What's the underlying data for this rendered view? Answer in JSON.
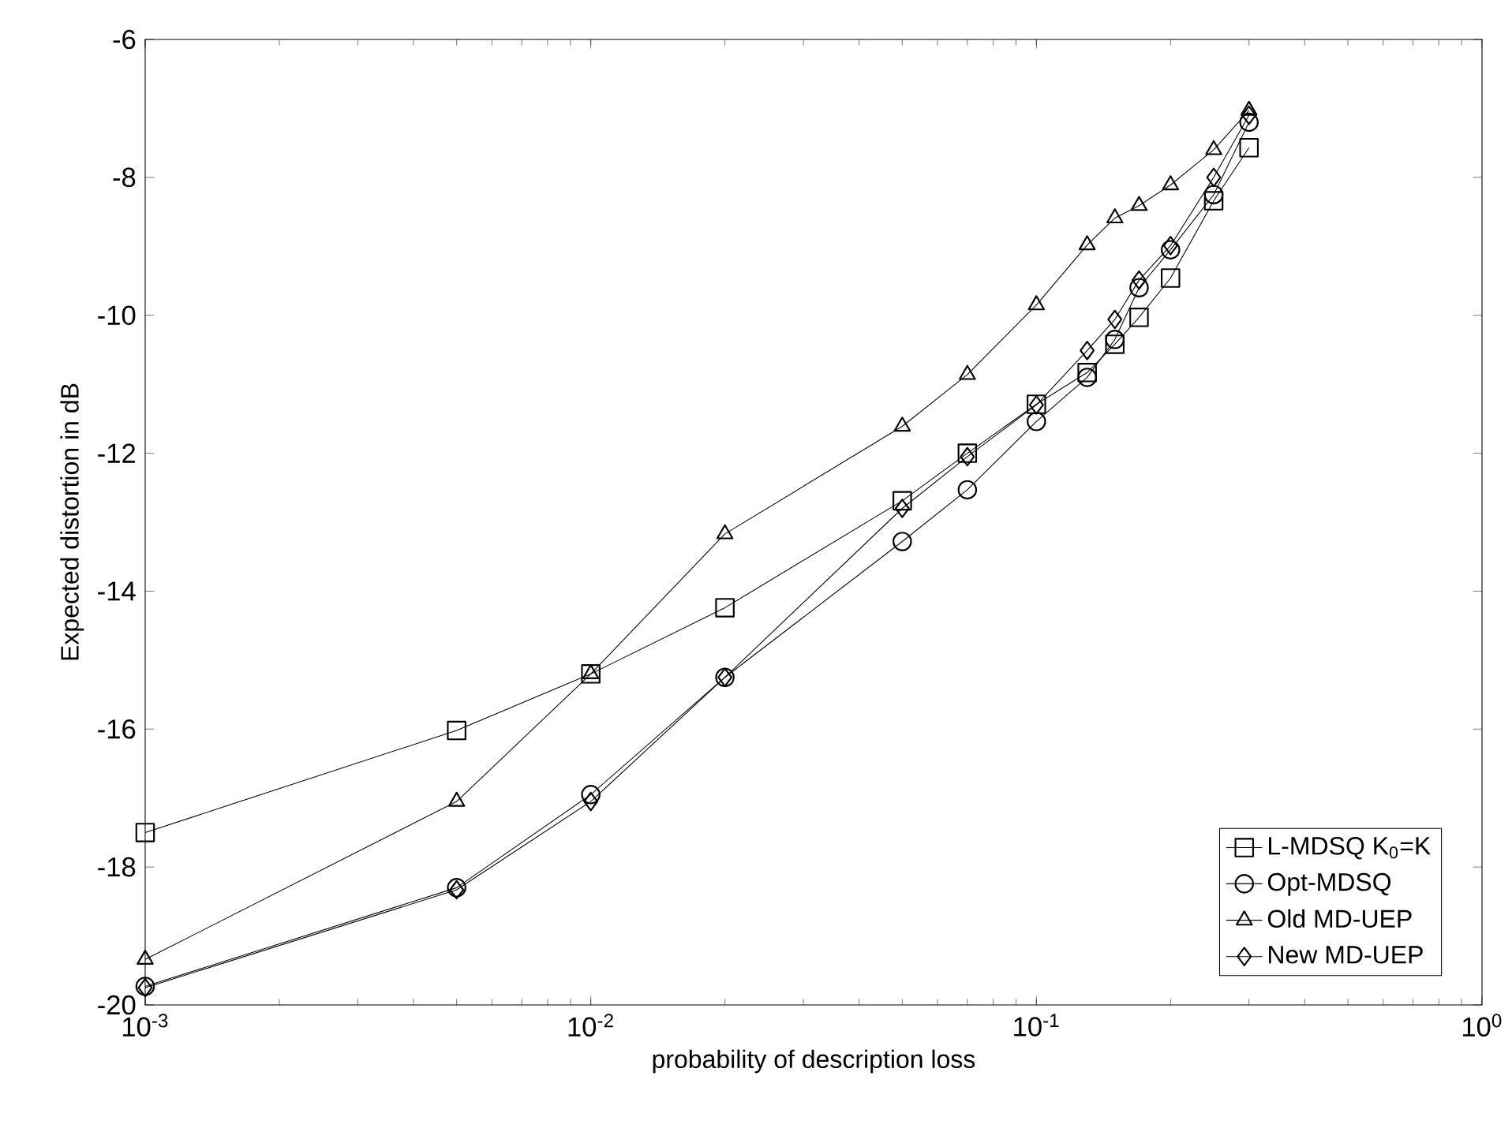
{
  "chart_data": {
    "type": "line",
    "xlabel": "probability of description loss",
    "ylabel": "Expected distortion in dB",
    "x": [
      0.001,
      0.005,
      0.01,
      0.02,
      0.05,
      0.07,
      0.1,
      0.13,
      0.15,
      0.17,
      0.2,
      0.25,
      0.3
    ],
    "series": [
      {
        "name": "L-MDSQ K$_{0}$=K",
        "color": "#000000",
        "marker": "square",
        "values": [
          -17.5,
          -16.02,
          -15.2,
          -14.24,
          -12.69,
          -12.0,
          -11.29,
          -10.83,
          -10.42,
          -10.03,
          -9.46,
          -8.34,
          -7.57
        ]
      },
      {
        "name": "Opt-MDSQ",
        "color": "#000000",
        "marker": "circle",
        "values": [
          -19.73,
          -18.3,
          -16.95,
          -15.25,
          -13.28,
          -12.53,
          -11.54,
          -10.9,
          -10.35,
          -9.6,
          -9.05,
          -8.25,
          -7.2
        ]
      },
      {
        "name": "Old MD-UEP",
        "color": "#000000",
        "marker": "triangle",
        "values": [
          -19.34,
          -17.05,
          -15.2,
          -13.17,
          -11.61,
          -10.86,
          -9.85,
          -8.98,
          -8.59,
          -8.41,
          -8.11,
          -7.6,
          -7.03
        ]
      },
      {
        "name": "New MD-UEP",
        "color": "#000000",
        "marker": "diamond",
        "values": [
          -19.75,
          -18.33,
          -17.05,
          -15.25,
          -12.8,
          -12.05,
          -11.3,
          -10.51,
          -10.06,
          -9.49,
          -8.99,
          -8.0,
          -7.1
        ]
      }
    ],
    "log": "x",
    "xlim": [
      0.001,
      1
    ],
    "xticks": [
      {
        "value": 0.001,
        "label": "10$^{-3}$"
      },
      {
        "value": 0.01,
        "label": "10$^{-2}$"
      },
      {
        "value": 0.1,
        "label": "10$^{-1}$"
      },
      {
        "value": 1,
        "label": "10$^{0}$"
      }
    ],
    "ylim": [
      -20,
      -6
    ],
    "yticks": [
      -20,
      -18,
      -16,
      -14,
      -12,
      -10,
      -8,
      -6
    ],
    "grid": false,
    "legend": "bottom right",
    "line_style": "solid"
  }
}
